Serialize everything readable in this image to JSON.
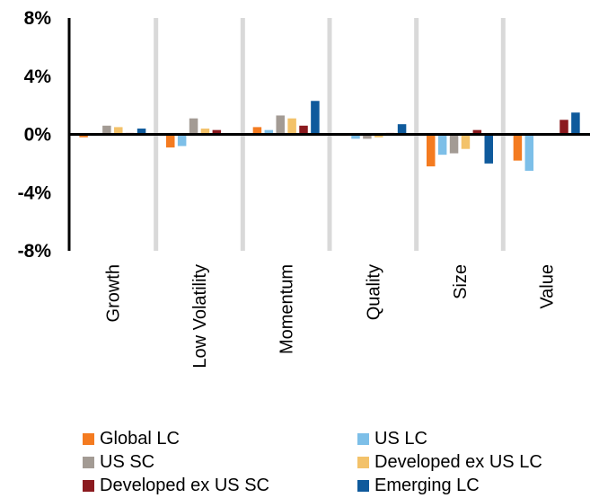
{
  "chart_data": {
    "type": "bar",
    "title": "",
    "xlabel": "",
    "ylabel": "",
    "categories": [
      "Growth",
      "Low Volatility",
      "Momentum",
      "Quality",
      "Size",
      "Value"
    ],
    "ylim": [
      -8,
      8
    ],
    "yticks": [
      8,
      4,
      0,
      -4,
      -8
    ],
    "ytick_labels": [
      "8%",
      "4%",
      "0%",
      "-4%",
      "-8%"
    ],
    "grid": "vertical separators between categories",
    "legend_position": "bottom",
    "series": [
      {
        "name": "Global LC",
        "color": "#F47B20",
        "values": [
          -0.2,
          -0.9,
          0.5,
          -0.1,
          -2.2,
          -1.8
        ]
      },
      {
        "name": "US LC",
        "color": "#7DBFE8",
        "values": [
          -0.1,
          -0.8,
          0.3,
          -0.3,
          -1.4,
          -2.5
        ]
      },
      {
        "name": "US SC",
        "color": "#A39B94",
        "values": [
          0.6,
          1.1,
          1.3,
          -0.3,
          -1.3,
          0.0
        ]
      },
      {
        "name": "Developed ex US LC",
        "color": "#F3C26A",
        "values": [
          0.5,
          0.4,
          1.1,
          -0.2,
          -1.0,
          0.0
        ]
      },
      {
        "name": "Developed ex US SC",
        "color": "#8B1A1F",
        "values": [
          0.1,
          0.3,
          0.6,
          0.1,
          0.3,
          1.0
        ]
      },
      {
        "name": "Emerging LC",
        "color": "#0F5A9C",
        "values": [
          0.4,
          0.0,
          2.3,
          0.7,
          -2.0,
          1.5
        ]
      }
    ]
  }
}
